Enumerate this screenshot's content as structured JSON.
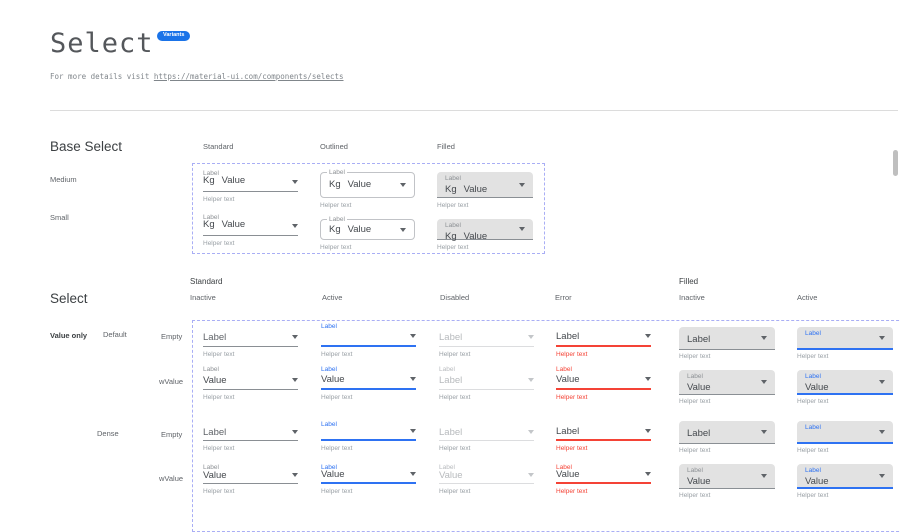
{
  "header": {
    "title": "Select",
    "badge": "Variants",
    "subtitle_prefix": "For more details visit ",
    "subtitle_link": "https://material-ui.com/components/selects"
  },
  "colors": {
    "accent": "#2e72f2",
    "badge": "#1a73e8",
    "error": "#f44336",
    "filled_bg": "#e2e2e2",
    "dashed_frame": "#a9aef5"
  },
  "base": {
    "heading": "Base Select",
    "columns": [
      "Standard",
      "Outlined",
      "Filled"
    ],
    "rows": [
      "Medium",
      "Small"
    ],
    "label": "Label",
    "adornment": "Kg",
    "value": "Value",
    "helper": "Helper text"
  },
  "sel": {
    "heading": "Select",
    "group_headers": [
      "Standard",
      "Filled"
    ],
    "state_headers": [
      "Inactive",
      "Active",
      "Disabled",
      "Error",
      "Inactive",
      "Active"
    ],
    "row_labels": [
      "Value only",
      "Default",
      "Empty",
      "wValue",
      "Dense",
      "Empty",
      "wValue"
    ],
    "helper": "Helper text",
    "cells": [
      [
        {
          "top": "",
          "value": "Label"
        },
        {
          "top": "Label",
          "value": ""
        },
        {
          "top": "",
          "value": "Label"
        },
        {
          "top": "",
          "value": "Label"
        },
        {
          "top": "",
          "value": "Label"
        },
        {
          "top": "Label",
          "value": ""
        }
      ],
      [
        {
          "top": "Label",
          "value": "Value"
        },
        {
          "top": "Label",
          "value": "Value"
        },
        {
          "top": "Label",
          "value": "Label"
        },
        {
          "top": "Label",
          "value": "Value"
        },
        {
          "top": "Label",
          "value": "Value"
        },
        {
          "top": "Label",
          "value": "Value"
        }
      ],
      [
        {
          "top": "",
          "value": "Label"
        },
        {
          "top": "Label",
          "value": ""
        },
        {
          "top": "",
          "value": "Label"
        },
        {
          "top": "",
          "value": "Label"
        },
        {
          "top": "",
          "value": "Label"
        },
        {
          "top": "Label",
          "value": ""
        }
      ],
      [
        {
          "top": "Label",
          "value": "Value"
        },
        {
          "top": "Label",
          "value": "Value"
        },
        {
          "top": "Label",
          "value": "Value"
        },
        {
          "top": "Label",
          "value": "Value"
        },
        {
          "top": "Label",
          "value": "Value"
        },
        {
          "top": "Label",
          "value": "Value"
        }
      ]
    ]
  }
}
